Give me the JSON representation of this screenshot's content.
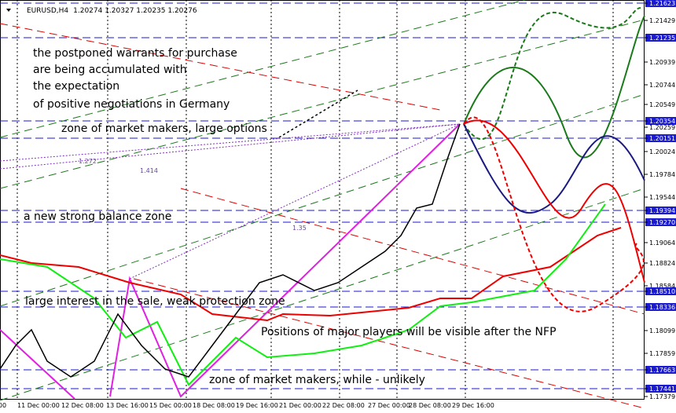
{
  "header": {
    "symbol": "EURUSD,H4",
    "prices": "1.20274 1.20327 1.20235 1.20276"
  },
  "price_axis": [
    {
      "label": "1.21623",
      "highlight": true
    },
    {
      "label": "1.21429",
      "highlight": false
    },
    {
      "label": "1.21235",
      "highlight": true
    },
    {
      "label": "1.20939",
      "highlight": false
    },
    {
      "label": "1.20744",
      "highlight": false
    },
    {
      "label": "1.20549",
      "highlight": false
    },
    {
      "label": "1.20354",
      "highlight": true
    },
    {
      "label": "1.20259",
      "highlight": false
    },
    {
      "label": "1.20151",
      "highlight": true
    },
    {
      "label": "1.20024",
      "highlight": false
    },
    {
      "label": "1.19784",
      "highlight": false
    },
    {
      "label": "1.19544",
      "highlight": false
    },
    {
      "label": "1.19394",
      "highlight": true
    },
    {
      "label": "1.19270",
      "highlight": true
    },
    {
      "label": "1.19064",
      "highlight": false
    },
    {
      "label": "1.18824",
      "highlight": false
    },
    {
      "label": "1.18584",
      "highlight": false
    },
    {
      "label": "1.18510",
      "highlight": true
    },
    {
      "label": "1.18336",
      "highlight": true
    },
    {
      "label": "1.18099",
      "highlight": false
    },
    {
      "label": "1.17859",
      "highlight": false
    },
    {
      "label": "1.17663",
      "highlight": true
    },
    {
      "label": "1.17441",
      "highlight": true
    },
    {
      "label": "1.17379",
      "highlight": false
    }
  ],
  "time_axis": [
    "00",
    "11 Dec 00:00",
    "12 Dec 08:00",
    "13 Dec 16:00",
    "15 Dec 00:00",
    "18 Dec 08:00",
    "19 Dec 16:00",
    "21 Dec 00:00",
    "22 Dec 08:00",
    "27 Dec 00:00",
    "28 Dec 08:00",
    "29 Dec 16:00"
  ],
  "fibo_labels": [
    "1.272",
    "1.414",
    "1.35"
  ],
  "annotations": [
    "the postponed warrants for purchase",
    "are being accumulated with",
    "the expectation",
    "of positive negotiations in Germany",
    "zone of market makers, large options",
    "a new strong balance zone",
    "large interest in the sale, weak protection zone",
    "Positions of major players will be visible after the NFP",
    "zone of market makers, while - unlikely"
  ]
}
